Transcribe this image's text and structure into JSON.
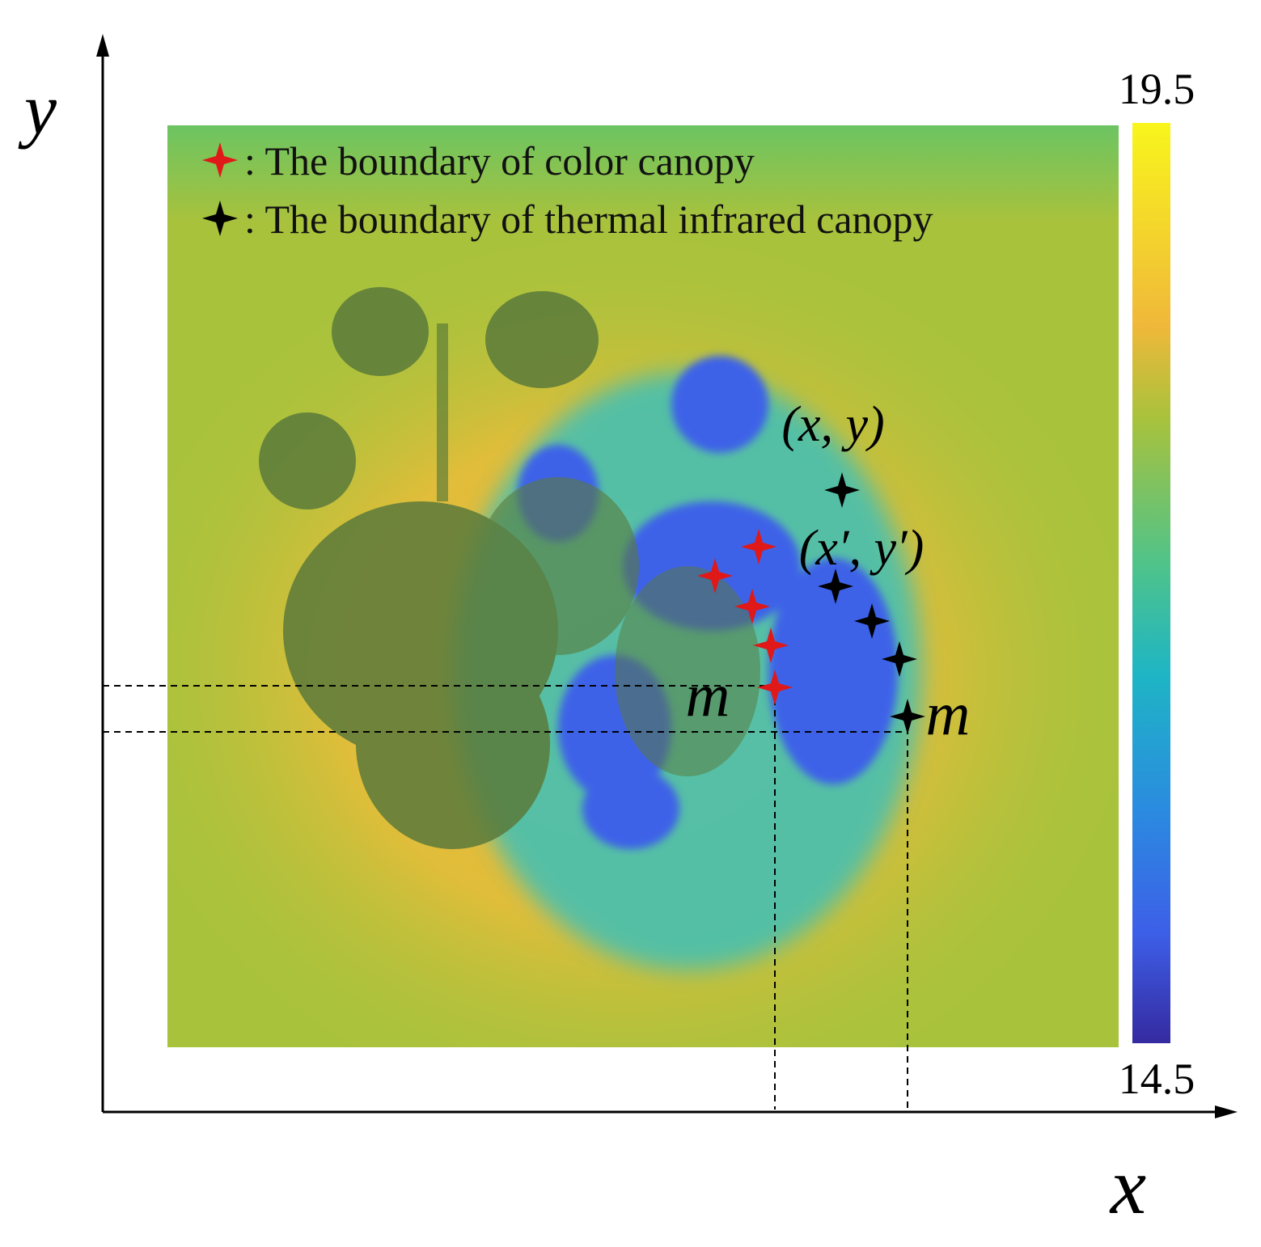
{
  "axes": {
    "x_label": "x",
    "y_label": "y"
  },
  "legend": [
    {
      "text": ": The boundary of color canopy"
    },
    {
      "text": ": The boundary of thermal infrared canopy"
    }
  ],
  "colorbar": {
    "max_label": "19.5",
    "min_label": "14.5"
  },
  "annotations": {
    "thermal_point": "(x, y)",
    "color_point": "(x′, y′)",
    "color_m": "m",
    "thermal_m": "m"
  }
}
